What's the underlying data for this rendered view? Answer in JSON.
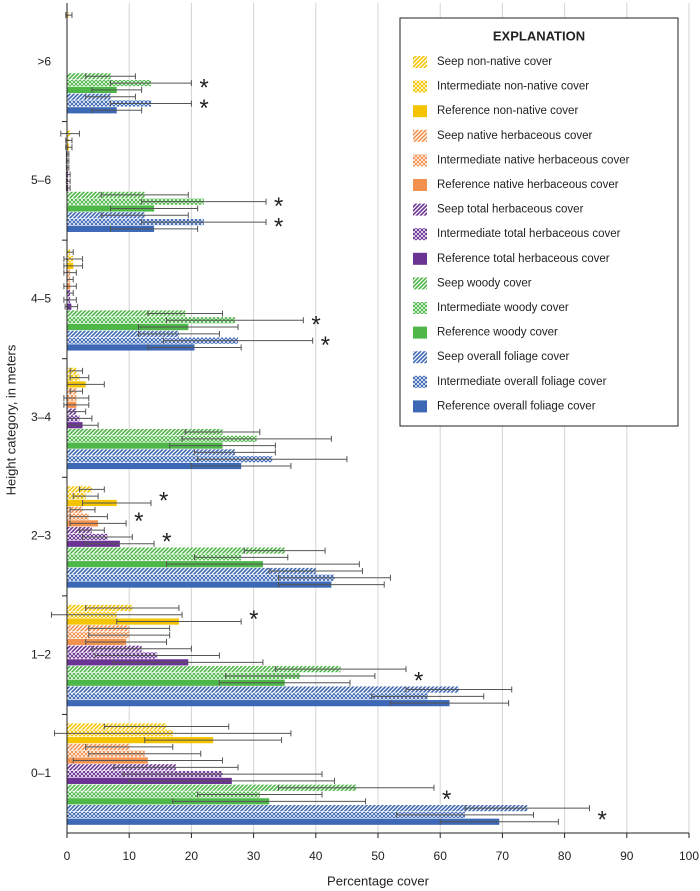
{
  "chart_data": {
    "type": "hbar-errors",
    "x_label": "Percentage cover",
    "y_label": "Height category, in meters",
    "legend_title": "EXPLANATION",
    "legend": "upper right",
    "grid": true,
    "xlim": [
      0,
      100
    ],
    "xticks": [
      0,
      10,
      20,
      30,
      40,
      50,
      60,
      70,
      80,
      90,
      100
    ],
    "categories": [
      ">6",
      "5–6",
      "4–5",
      "3–4",
      "2–3",
      "1–2",
      "0–1"
    ],
    "series": [
      {
        "name": "Seep non-native cover",
        "color": "#f5c400",
        "pattern": "diagonal",
        "values": [
          0.3,
          0.5,
          0.5,
          1.5,
          4,
          10.5,
          16
        ],
        "errors": [
          0.5,
          1.5,
          0.5,
          1,
          2,
          7.5,
          10
        ],
        "markers": [
          null,
          null,
          null,
          null,
          null,
          null,
          null
        ]
      },
      {
        "name": "Intermediate non-native cover",
        "color": "#f5c400",
        "pattern": "crosshatch",
        "values": [
          0,
          0.3,
          1,
          2,
          3,
          8,
          17
        ],
        "errors": [
          0,
          0.5,
          1.5,
          1.5,
          2,
          10.5,
          19
        ],
        "markers": [
          null,
          null,
          null,
          null,
          "*",
          "*",
          null
        ]
      },
      {
        "name": "Reference non-native cover",
        "color": "#f5c400",
        "pattern": "solid",
        "values": [
          0,
          0.3,
          1,
          3,
          8,
          18,
          23.5
        ],
        "errors": [
          0,
          0.5,
          1.5,
          3,
          5.5,
          10,
          11
        ],
        "markers": [
          null,
          null,
          null,
          null,
          null,
          null,
          null
        ]
      },
      {
        "name": "Seep native herbaceous cover",
        "color": "#f3924f",
        "pattern": "diagonal",
        "values": [
          0,
          0.1,
          0.5,
          1.5,
          2.5,
          10,
          10
        ],
        "errors": [
          0,
          0.2,
          1,
          1,
          2,
          6.5,
          7
        ],
        "markers": [
          null,
          null,
          null,
          null,
          null,
          null,
          null
        ]
      },
      {
        "name": "Intermediate native herbaceous cover",
        "color": "#f3924f",
        "pattern": "crosshatch",
        "values": [
          0,
          0.1,
          0.5,
          1.5,
          3.5,
          10,
          12.5
        ],
        "errors": [
          0,
          0.2,
          0.5,
          2,
          3,
          6.5,
          9
        ],
        "markers": [
          null,
          null,
          null,
          null,
          "*",
          null,
          null
        ]
      },
      {
        "name": "Reference native herbaceous cover",
        "color": "#f3924f",
        "pattern": "solid",
        "values": [
          0,
          0.1,
          0.5,
          1.5,
          5,
          9.5,
          13
        ],
        "errors": [
          0,
          0.2,
          1,
          2,
          4.5,
          6.5,
          12
        ],
        "markers": [
          null,
          null,
          null,
          null,
          null,
          null,
          null
        ]
      },
      {
        "name": "Seep total herbaceous cover",
        "color": "#6b3394",
        "pattern": "diagonal",
        "values": [
          0,
          0.2,
          0.5,
          1.5,
          4,
          12,
          17.5
        ],
        "errors": [
          0,
          0.3,
          0.5,
          1.5,
          2,
          8,
          10
        ],
        "markers": [
          null,
          null,
          null,
          null,
          null,
          null,
          null
        ]
      },
      {
        "name": "Intermediate total herbaceous cover",
        "color": "#6b3394",
        "pattern": "crosshatch",
        "values": [
          0,
          0.2,
          0.5,
          2,
          6.5,
          14.5,
          25
        ],
        "errors": [
          0,
          0.3,
          1,
          2,
          4,
          10,
          16
        ],
        "markers": [
          null,
          null,
          null,
          null,
          "*",
          null,
          null
        ]
      },
      {
        "name": "Reference total herbaceous cover",
        "color": "#6b3394",
        "pattern": "solid",
        "values": [
          0,
          0.2,
          0.7,
          2.5,
          8.5,
          19.5,
          26.5
        ],
        "errors": [
          0,
          0.3,
          1,
          2.5,
          5.5,
          12,
          16.5
        ],
        "markers": [
          null,
          null,
          null,
          null,
          null,
          null,
          null
        ]
      },
      {
        "name": "Seep woody cover",
        "color": "#4db848",
        "pattern": "diagonal",
        "values": [
          7,
          12.5,
          19,
          25,
          35,
          44,
          46.5
        ],
        "errors": [
          4,
          7,
          6,
          6,
          6.5,
          10.5,
          12.5
        ],
        "markers": [
          null,
          null,
          null,
          null,
          null,
          null,
          null
        ]
      },
      {
        "name": "Intermediate woody cover",
        "color": "#4db848",
        "pattern": "crosshatch",
        "values": [
          13.5,
          22,
          27,
          30.5,
          28,
          37.5,
          31
        ],
        "errors": [
          6.5,
          10,
          11,
          12,
          7.5,
          12,
          10
        ],
        "markers": [
          "*",
          "*",
          "*",
          null,
          null,
          "*",
          "*"
        ]
      },
      {
        "name": "Reference woody cover",
        "color": "#4db848",
        "pattern": "solid",
        "values": [
          8,
          14,
          19.5,
          25,
          31.5,
          35,
          32.5
        ],
        "errors": [
          4,
          7,
          8,
          8.5,
          15.5,
          10.5,
          15.5
        ],
        "markers": [
          null,
          null,
          null,
          null,
          null,
          null,
          null
        ]
      },
      {
        "name": "Seep overall foliage cover",
        "color": "#3d68b5",
        "pattern": "diagonal",
        "values": [
          7,
          12.5,
          18,
          27,
          40,
          63,
          74
        ],
        "errors": [
          4,
          7,
          6.5,
          6.5,
          7.5,
          8.5,
          10
        ],
        "markers": [
          null,
          null,
          null,
          null,
          null,
          null,
          null
        ]
      },
      {
        "name": "Intermediate overall foliage cover",
        "color": "#3d68b5",
        "pattern": "crosshatch",
        "values": [
          13.5,
          22,
          27.5,
          33,
          43,
          58,
          64
        ],
        "errors": [
          6.5,
          10,
          12,
          12,
          9,
          9,
          11
        ],
        "markers": [
          "*",
          "*",
          "*",
          null,
          null,
          null,
          "*"
        ]
      },
      {
        "name": "Reference overall foliage cover",
        "color": "#3d68b5",
        "pattern": "solid",
        "values": [
          8,
          14,
          20.5,
          28,
          42.5,
          61.5,
          69.5
        ],
        "errors": [
          4,
          7,
          7.5,
          8,
          8.5,
          9.5,
          9.5
        ],
        "markers": [
          null,
          null,
          null,
          null,
          null,
          null,
          null
        ]
      }
    ]
  }
}
